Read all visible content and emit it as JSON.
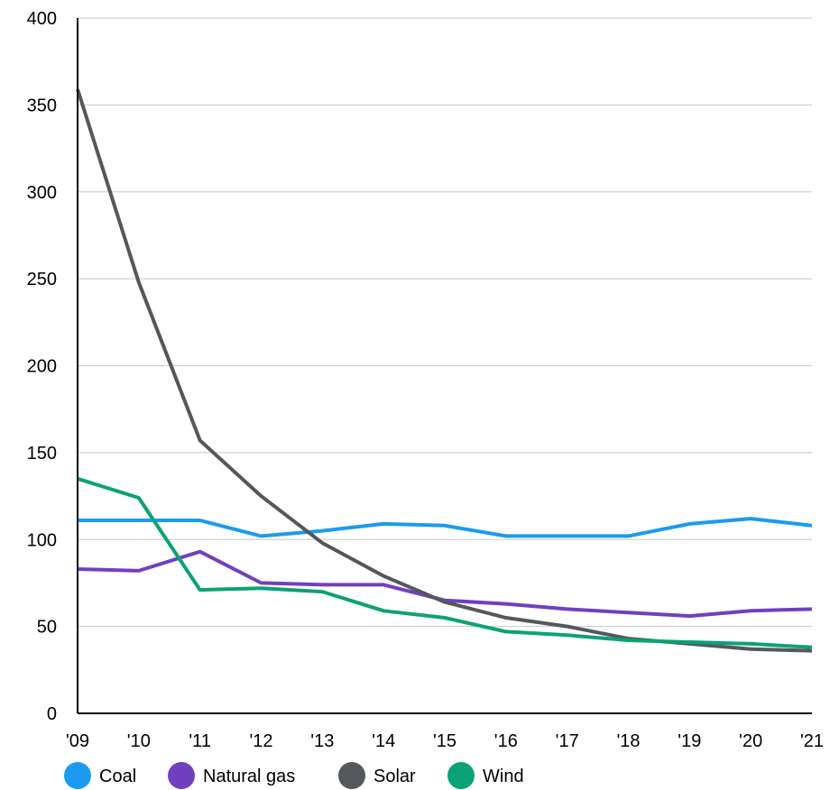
{
  "chart_data": {
    "type": "line",
    "title": "",
    "xlabel": "",
    "ylabel": "",
    "categories": [
      "'09",
      "'10",
      "'11",
      "'12",
      "'13",
      "'14",
      "'15",
      "'16",
      "'17",
      "'18",
      "'19",
      "'20",
      "'21"
    ],
    "ylim": [
      0,
      400
    ],
    "yticks": [
      "0",
      "50",
      "100",
      "150",
      "200",
      "250",
      "300",
      "350",
      "400"
    ],
    "grid": "horizontal",
    "legend_position": "bottom",
    "series": [
      {
        "name": "Coal",
        "color": "#1a9bf0",
        "values": [
          111,
          111,
          111,
          102,
          105,
          109,
          108,
          102,
          102,
          102,
          109,
          112,
          108
        ]
      },
      {
        "name": "Natural gas",
        "color": "#7040c0",
        "values": [
          83,
          82,
          93,
          75,
          74,
          74,
          65,
          63,
          60,
          58,
          56,
          59,
          60
        ]
      },
      {
        "name": "Solar",
        "color": "#54575b",
        "values": [
          359,
          248,
          157,
          125,
          98,
          79,
          64,
          55,
          50,
          43,
          40,
          37,
          36
        ]
      },
      {
        "name": "Wind",
        "color": "#0ba275",
        "values": [
          135,
          124,
          71,
          72,
          70,
          59,
          55,
          47,
          45,
          42,
          41,
          40,
          38
        ]
      }
    ]
  }
}
